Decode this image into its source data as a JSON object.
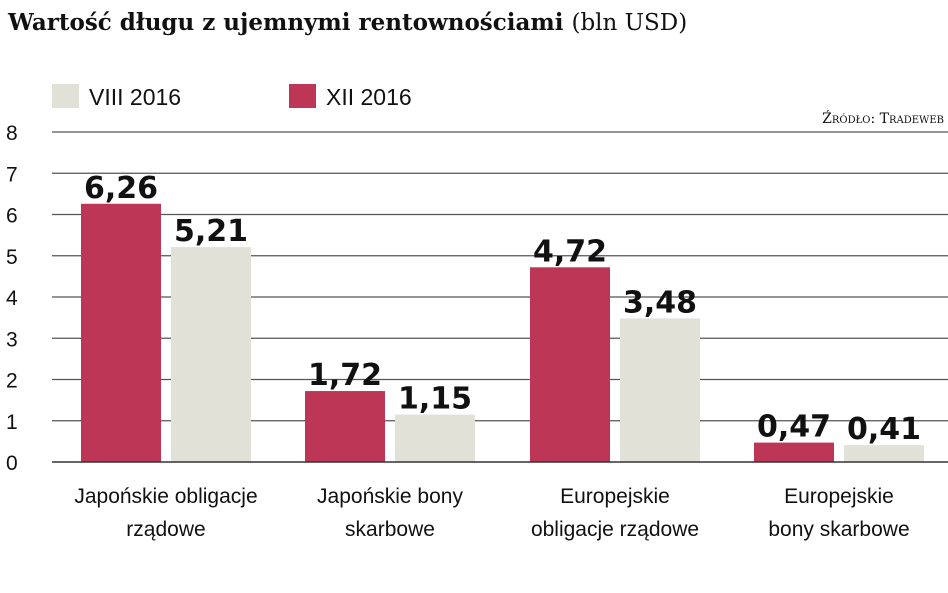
{
  "title": {
    "main": "Wartość długu z ujemnymi rentownościami",
    "unit": "(bln USD)"
  },
  "source": "Źródło: Tradeweb",
  "colors": {
    "VIII 2016": "#e2e1d8",
    "XII 2016": "#bd3656"
  },
  "chart_data": {
    "type": "bar",
    "categories": [
      [
        "Japońskie obligacje",
        "rządowe"
      ],
      [
        "Japońskie bony",
        "skarbowe"
      ],
      [
        "Europejskie",
        "obligacje rządowe"
      ],
      [
        "Europejskie",
        "bony skarbowe"
      ]
    ],
    "series": [
      {
        "name": "XII 2016",
        "values": [
          6.26,
          1.72,
          4.72,
          0.47
        ],
        "labels": [
          "6,26",
          "1,72",
          "4,72",
          "0,47"
        ]
      },
      {
        "name": "VIII 2016",
        "values": [
          5.21,
          1.15,
          3.48,
          0.41
        ],
        "labels": [
          "5,21",
          "1,15",
          "3,48",
          "0,41"
        ]
      }
    ],
    "legend_order": [
      "VIII 2016",
      "XII 2016"
    ],
    "legend_placement": "top-left",
    "ylim": [
      0,
      8
    ],
    "yticks": [
      "0",
      "1",
      "2",
      "3",
      "4",
      "5",
      "6",
      "7",
      "8"
    ],
    "grid": true,
    "xlabel": "",
    "ylabel": ""
  }
}
